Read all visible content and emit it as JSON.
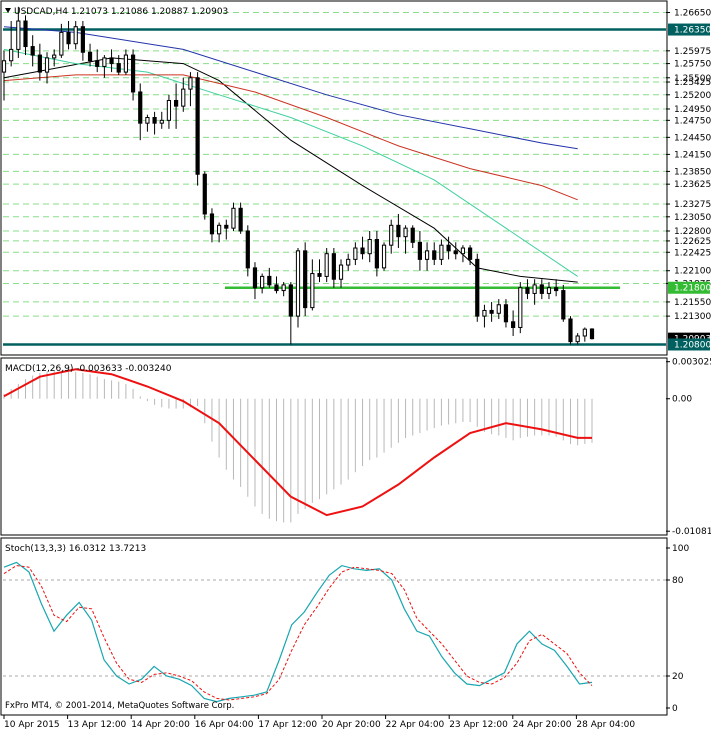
{
  "header": {
    "symbol_line": "USDCAD,H4  1.21073 1.21086 1.20887 1.20903"
  },
  "macd_header": "MACD(12,26,9) -0.003633 -0.003240",
  "stoch_header": "Stoch(13,3,3) 16.0312 13.7213",
  "watermark": "FxPro MT4, © 2001-2014, MetaQuotes Software Corp.",
  "price_axis": {
    "labels": [
      "1.26650",
      "1.26350",
      "1.25975",
      "1.25750",
      "1.25500",
      "1.25425",
      "1.25200",
      "1.24950",
      "1.24750",
      "1.24450",
      "1.24150",
      "1.23850",
      "1.23625",
      "1.23275",
      "1.23050",
      "1.22800",
      "1.22625",
      "1.22425",
      "1.22100",
      "1.21875",
      "1.21800",
      "1.21550",
      "1.21300",
      "1.20903",
      "1.20800"
    ],
    "highlighted": [
      {
        "label": "1.26350",
        "color": "#006060"
      },
      {
        "label": "1.21800",
        "color": "#33bb33"
      },
      {
        "label": "1.20903",
        "color": "#000000"
      },
      {
        "label": "1.20800",
        "color": "#006060"
      }
    ]
  },
  "time_axis": {
    "labels": [
      "10 Apr 2015",
      "13 Apr 12:00",
      "14 Apr 20:00",
      "16 Apr 04:00",
      "17 Apr 12:00",
      "20 Apr 20:00",
      "22 Apr 04:00",
      "23 Apr 12:00",
      "24 Apr 20:00",
      "28 Apr 04:00"
    ]
  },
  "macd_axis": {
    "labels": [
      "0.003025",
      "0.00",
      "-0.010817"
    ]
  },
  "stoch_axis": {
    "labels": [
      "100",
      "80",
      "20",
      "0"
    ]
  },
  "colors": {
    "up_candle": "#ffffff",
    "down_candle": "#000000",
    "ma_fast": "#000000",
    "ma_mid": "#40d0a0",
    "ma_slow1": "#cc3322",
    "ma_slow2": "#2233aa",
    "level_dark": "#006060",
    "level_green": "#33bb33",
    "fib_dashed": "#88dd88",
    "macd_signal": "#ee1111",
    "stoch_main": "#1aa6b0",
    "stoch_signal": "#ee1111"
  },
  "chart_data": [
    {
      "type": "candlestick",
      "symbol": "USDCAD",
      "timeframe": "H4",
      "last_bar": {
        "open": 1.21073,
        "high": 1.21086,
        "low": 1.20887,
        "close": 1.20903
      },
      "ylim": [
        1.2065,
        1.268
      ],
      "horizontal_levels": [
        1.2635,
        1.218,
        1.208
      ],
      "candles": [
        [
          1.256,
          1.2598,
          1.251,
          1.258
        ],
        [
          1.258,
          1.265,
          1.257,
          1.26
        ],
        [
          1.26,
          1.2675,
          1.2585,
          1.265
        ],
        [
          1.265,
          1.266,
          1.259,
          1.2605
        ],
        [
          1.2605,
          1.2625,
          1.257,
          1.259
        ],
        [
          1.259,
          1.261,
          1.2545,
          1.256
        ],
        [
          1.256,
          1.2595,
          1.254,
          1.2585
        ],
        [
          1.2585,
          1.26,
          1.257,
          1.259
        ],
        [
          1.259,
          1.2645,
          1.2585,
          1.263
        ],
        [
          1.263,
          1.265,
          1.26,
          1.261
        ],
        [
          1.261,
          1.265,
          1.26,
          1.264
        ],
        [
          1.264,
          1.265,
          1.258,
          1.2595
        ],
        [
          1.2595,
          1.261,
          1.257,
          1.258
        ],
        [
          1.258,
          1.26,
          1.256,
          1.257
        ],
        [
          1.257,
          1.259,
          1.255,
          1.2585
        ],
        [
          1.2585,
          1.26,
          1.256,
          1.2575
        ],
        [
          1.2575,
          1.259,
          1.2555,
          1.256
        ],
        [
          1.256,
          1.26,
          1.2555,
          1.259
        ],
        [
          1.259,
          1.26,
          1.251,
          1.2525
        ],
        [
          1.2525,
          1.254,
          1.244,
          1.247
        ],
        [
          1.247,
          1.2485,
          1.2455,
          1.248
        ],
        [
          1.248,
          1.249,
          1.245,
          1.247
        ],
        [
          1.247,
          1.249,
          1.246,
          1.2475
        ],
        [
          1.2475,
          1.252,
          1.246,
          1.251
        ],
        [
          1.251,
          1.254,
          1.246,
          1.25
        ],
        [
          1.25,
          1.255,
          1.249,
          1.253
        ],
        [
          1.253,
          1.256,
          1.25,
          1.255
        ],
        [
          1.255,
          1.256,
          1.236,
          1.238
        ],
        [
          1.238,
          1.2385,
          1.23,
          1.231
        ],
        [
          1.231,
          1.232,
          1.226,
          1.2275
        ],
        [
          1.2275,
          1.2295,
          1.226,
          1.229
        ],
        [
          1.229,
          1.23,
          1.2265,
          1.2285
        ],
        [
          1.2285,
          1.233,
          1.228,
          1.232
        ],
        [
          1.232,
          1.233,
          1.2275,
          1.228
        ],
        [
          1.228,
          1.229,
          1.22,
          1.2215
        ],
        [
          1.2215,
          1.2225,
          1.216,
          1.218
        ],
        [
          1.218,
          1.2205,
          1.217,
          1.22
        ],
        [
          1.22,
          1.2215,
          1.218,
          1.2185
        ],
        [
          1.2185,
          1.22,
          1.217,
          1.2175
        ],
        [
          1.2175,
          1.219,
          1.2165,
          1.2185
        ],
        [
          1.2185,
          1.219,
          1.208,
          1.213
        ],
        [
          1.213,
          1.225,
          1.211,
          1.2245
        ],
        [
          1.2245,
          1.226,
          1.213,
          1.2145
        ],
        [
          1.2145,
          1.223,
          1.214,
          1.2205
        ],
        [
          1.2205,
          1.223,
          1.219,
          1.22
        ],
        [
          1.22,
          1.225,
          1.219,
          1.224
        ],
        [
          1.224,
          1.225,
          1.218,
          1.2195
        ],
        [
          1.2195,
          1.223,
          1.218,
          1.222
        ],
        [
          1.222,
          1.224,
          1.221,
          1.223
        ],
        [
          1.223,
          1.226,
          1.222,
          1.225
        ],
        [
          1.225,
          1.227,
          1.223,
          1.224
        ],
        [
          1.224,
          1.228,
          1.2225,
          1.2265
        ],
        [
          1.2265,
          1.228,
          1.22,
          1.2215
        ],
        [
          1.2215,
          1.226,
          1.221,
          1.2255
        ],
        [
          1.2255,
          1.23,
          1.224,
          1.229
        ],
        [
          1.229,
          1.231,
          1.225,
          1.227
        ],
        [
          1.227,
          1.229,
          1.224,
          1.2285
        ],
        [
          1.2285,
          1.229,
          1.225,
          1.226
        ],
        [
          1.226,
          1.228,
          1.221,
          1.223
        ],
        [
          1.223,
          1.226,
          1.221,
          1.2245
        ],
        [
          1.2245,
          1.226,
          1.222,
          1.223
        ],
        [
          1.223,
          1.2265,
          1.222,
          1.2255
        ],
        [
          1.2255,
          1.227,
          1.223,
          1.2245
        ],
        [
          1.2245,
          1.226,
          1.223,
          1.224
        ],
        [
          1.224,
          1.2255,
          1.2225,
          1.225
        ],
        [
          1.225,
          1.2255,
          1.222,
          1.223
        ],
        [
          1.223,
          1.224,
          1.212,
          1.213
        ],
        [
          1.213,
          1.215,
          1.211,
          1.214
        ],
        [
          1.214,
          1.2155,
          1.212,
          1.2135
        ],
        [
          1.2135,
          1.216,
          1.2125,
          1.215
        ],
        [
          1.215,
          1.216,
          1.211,
          1.212
        ],
        [
          1.212,
          1.214,
          1.2095,
          1.211
        ],
        [
          1.211,
          1.219,
          1.21,
          1.218
        ],
        [
          1.218,
          1.2195,
          1.216,
          1.217
        ],
        [
          1.217,
          1.2195,
          1.215,
          1.2185
        ],
        [
          1.2185,
          1.2195,
          1.216,
          1.217
        ],
        [
          1.217,
          1.219,
          1.216,
          1.218
        ],
        [
          1.218,
          1.2195,
          1.2165,
          1.2175
        ],
        [
          1.2175,
          1.2185,
          1.212,
          1.2125
        ],
        [
          1.2125,
          1.213,
          1.208,
          1.2085
        ],
        [
          1.2085,
          1.21,
          1.208,
          1.2095
        ],
        [
          1.2095,
          1.211,
          1.2085,
          1.2107
        ],
        [
          1.21073,
          1.21086,
          1.20887,
          1.20903
        ]
      ],
      "moving_averages": [
        {
          "color": "#000000",
          "points": [
            [
              0,
              1.255
            ],
            [
              15,
              1.2585
            ],
            [
              25,
              1.2575
            ],
            [
              30,
              1.2545
            ],
            [
              40,
              1.244
            ],
            [
              50,
              1.236
            ],
            [
              60,
              1.2285
            ],
            [
              66,
              1.2215
            ],
            [
              72,
              1.22
            ],
            [
              80,
              1.219
            ]
          ]
        },
        {
          "color": "#40d0a0",
          "points": [
            [
              0,
              1.26
            ],
            [
              10,
              1.2575
            ],
            [
              20,
              1.256
            ],
            [
              30,
              1.252
            ],
            [
              40,
              1.248
            ],
            [
              50,
              1.243
            ],
            [
              60,
              1.237
            ],
            [
              70,
              1.2285
            ],
            [
              80,
              1.22
            ]
          ]
        },
        {
          "color": "#cc3322",
          "points": [
            [
              0,
              1.2545
            ],
            [
              10,
              1.2555
            ],
            [
              25,
              1.2555
            ],
            [
              35,
              1.2525
            ],
            [
              45,
              1.248
            ],
            [
              55,
              1.243
            ],
            [
              65,
              1.239
            ],
            [
              75,
              1.236
            ],
            [
              80,
              1.2335
            ]
          ]
        },
        {
          "color": "#2233aa",
          "points": [
            [
              0,
              1.264
            ],
            [
              10,
              1.263
            ],
            [
              25,
              1.26
            ],
            [
              35,
              1.256
            ],
            [
              45,
              1.252
            ],
            [
              55,
              1.2485
            ],
            [
              65,
              1.246
            ],
            [
              75,
              1.2435
            ],
            [
              80,
              1.2425
            ]
          ]
        }
      ]
    },
    {
      "type": "bar+line",
      "indicator": "MACD(12,26,9)",
      "main": -0.003633,
      "signal": -0.00324,
      "ylim": [
        -0.0108,
        0.003
      ],
      "histogram": [
        0.0004,
        0.0008,
        0.0012,
        0.0016,
        0.0019,
        0.0021,
        0.0022,
        0.0023,
        0.0023,
        0.0022,
        0.0022,
        0.0021,
        0.002,
        0.0018,
        0.0016,
        0.0015,
        0.0014,
        0.0012,
        0.0008,
        0.0002,
        -0.0002,
        -0.0005,
        -0.0007,
        -0.0008,
        -0.0008,
        -0.0008,
        -0.0007,
        -0.0006,
        -0.002,
        -0.0035,
        -0.0048,
        -0.0058,
        -0.0066,
        -0.0072,
        -0.008,
        -0.0088,
        -0.0094,
        -0.0098,
        -0.01,
        -0.0101,
        -0.0101,
        -0.0094,
        -0.009,
        -0.0085,
        -0.0082,
        -0.0078,
        -0.0074,
        -0.007,
        -0.0066,
        -0.006,
        -0.0055,
        -0.005,
        -0.0048,
        -0.0044,
        -0.004,
        -0.0036,
        -0.0032,
        -0.003,
        -0.0028,
        -0.0026,
        -0.0024,
        -0.0022,
        -0.0021,
        -0.002,
        -0.0019,
        -0.0019,
        -0.0023,
        -0.0027,
        -0.0029,
        -0.003,
        -0.0032,
        -0.0034,
        -0.0032,
        -0.0031,
        -0.003,
        -0.003,
        -0.003,
        -0.0031,
        -0.0034,
        -0.0037,
        -0.0038,
        -0.0037,
        -0.0036
      ],
      "signal_line": [
        [
          0,
          0.0002
        ],
        [
          5,
          0.0018
        ],
        [
          10,
          0.0024
        ],
        [
          15,
          0.002
        ],
        [
          20,
          0.001
        ],
        [
          25,
          -0.0002
        ],
        [
          30,
          -0.002
        ],
        [
          35,
          -0.005
        ],
        [
          40,
          -0.008
        ],
        [
          45,
          -0.0095
        ],
        [
          50,
          -0.0088
        ],
        [
          55,
          -0.007
        ],
        [
          60,
          -0.0048
        ],
        [
          65,
          -0.0028
        ],
        [
          70,
          -0.002
        ],
        [
          75,
          -0.0025
        ],
        [
          80,
          -0.0032
        ],
        [
          82,
          -0.0032
        ]
      ]
    },
    {
      "type": "line",
      "indicator": "Stoch(13,3,3)",
      "main": 16.0312,
      "signal": 13.7213,
      "ylim": [
        0,
        100
      ],
      "levels": [
        80,
        20
      ],
      "main_line": [
        [
          0,
          88
        ],
        [
          2,
          91
        ],
        [
          4,
          85
        ],
        [
          6,
          65
        ],
        [
          8,
          48
        ],
        [
          10,
          58
        ],
        [
          12,
          66
        ],
        [
          14,
          55
        ],
        [
          16,
          30
        ],
        [
          18,
          20
        ],
        [
          20,
          15
        ],
        [
          22,
          18
        ],
        [
          24,
          26
        ],
        [
          26,
          20
        ],
        [
          28,
          18
        ],
        [
          30,
          14
        ],
        [
          32,
          6
        ],
        [
          34,
          4
        ],
        [
          36,
          6
        ],
        [
          38,
          7
        ],
        [
          40,
          8
        ],
        [
          42,
          10
        ],
        [
          44,
          30
        ],
        [
          46,
          52
        ],
        [
          48,
          60
        ],
        [
          50,
          72
        ],
        [
          52,
          83
        ],
        [
          54,
          89
        ],
        [
          56,
          87
        ],
        [
          58,
          86
        ],
        [
          60,
          87
        ],
        [
          62,
          80
        ],
        [
          64,
          62
        ],
        [
          66,
          48
        ],
        [
          68,
          45
        ],
        [
          70,
          32
        ],
        [
          72,
          22
        ],
        [
          74,
          15
        ],
        [
          76,
          14
        ],
        [
          78,
          18
        ],
        [
          80,
          22
        ],
        [
          82,
          40
        ],
        [
          84,
          48
        ],
        [
          86,
          40
        ],
        [
          88,
          36
        ],
        [
          90,
          26
        ],
        [
          92,
          15
        ],
        [
          94,
          16
        ]
      ],
      "signal_line": [
        [
          0,
          84
        ],
        [
          2,
          89
        ],
        [
          4,
          88
        ],
        [
          6,
          76
        ],
        [
          8,
          58
        ],
        [
          10,
          54
        ],
        [
          12,
          63
        ],
        [
          14,
          62
        ],
        [
          16,
          44
        ],
        [
          18,
          28
        ],
        [
          20,
          18
        ],
        [
          22,
          16
        ],
        [
          24,
          21
        ],
        [
          26,
          22
        ],
        [
          28,
          20
        ],
        [
          30,
          17
        ],
        [
          32,
          10
        ],
        [
          34,
          6
        ],
        [
          36,
          5
        ],
        [
          38,
          6
        ],
        [
          40,
          7
        ],
        [
          42,
          9
        ],
        [
          44,
          18
        ],
        [
          46,
          36
        ],
        [
          48,
          52
        ],
        [
          50,
          63
        ],
        [
          52,
          75
        ],
        [
          54,
          85
        ],
        [
          56,
          88
        ],
        [
          58,
          87
        ],
        [
          60,
          86
        ],
        [
          62,
          84
        ],
        [
          64,
          74
        ],
        [
          66,
          56
        ],
        [
          68,
          48
        ],
        [
          70,
          40
        ],
        [
          72,
          30
        ],
        [
          74,
          20
        ],
        [
          76,
          16
        ],
        [
          78,
          15
        ],
        [
          80,
          19
        ],
        [
          82,
          28
        ],
        [
          84,
          42
        ],
        [
          86,
          46
        ],
        [
          88,
          40
        ],
        [
          90,
          34
        ],
        [
          92,
          22
        ],
        [
          94,
          14
        ]
      ]
    }
  ]
}
